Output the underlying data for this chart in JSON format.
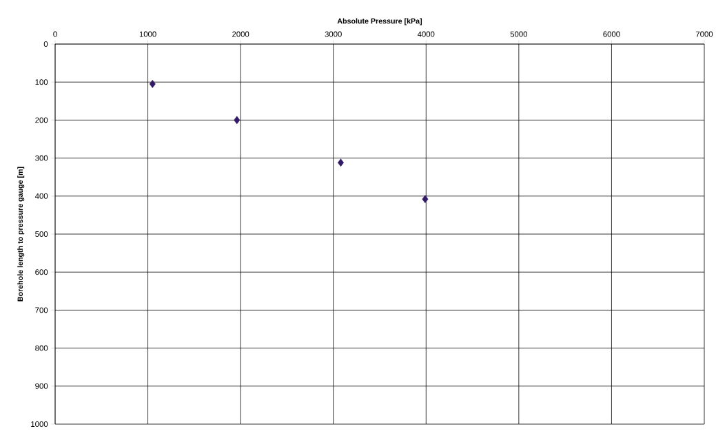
{
  "chart_data": {
    "type": "scatter",
    "xlabel": "Absolute Pressure [kPa]",
    "ylabel": "Borehole length to pressure gauge [m]",
    "x": [
      1050,
      1960,
      3080,
      3990
    ],
    "series": [
      {
        "color": "#331a66",
        "values": [
          105,
          200,
          312,
          408
        ]
      }
    ],
    "xlim": [
      0,
      7000
    ],
    "xticks": [
      0,
      1000,
      2000,
      3000,
      4000,
      5000,
      6000,
      7000
    ],
    "ylim": [
      1000,
      0
    ],
    "yticks": [
      0,
      100,
      200,
      300,
      400,
      500,
      600,
      700,
      800,
      900,
      1000
    ],
    "grid": true,
    "marker": "diamond"
  }
}
